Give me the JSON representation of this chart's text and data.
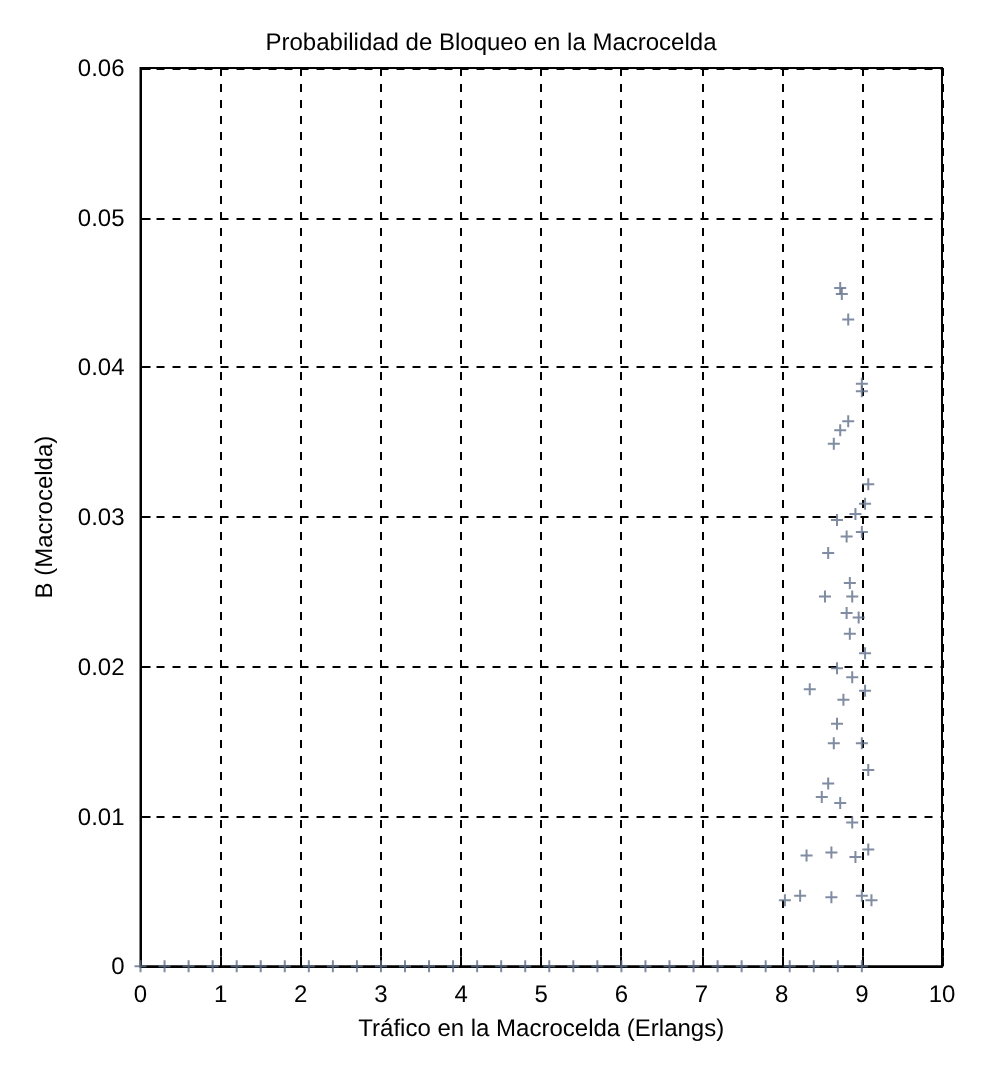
{
  "chart_data": {
    "type": "scatter",
    "title": "Probabilidad de Bloqueo en la Macrocelda",
    "xlabel": "Tráfico en la Macrocelda (Erlangs)",
    "ylabel": "B (Macrocelda)",
    "xlim": [
      0,
      10
    ],
    "ylim": [
      0,
      0.06
    ],
    "xticks": [
      0,
      1,
      2,
      3,
      4,
      5,
      6,
      7,
      8,
      9,
      10
    ],
    "yticks": [
      0,
      0.01,
      0.02,
      0.03,
      0.04,
      0.05,
      0.06
    ],
    "grid": true,
    "marker": "cross",
    "series": [
      {
        "color": "#5f6f8a",
        "x": [
          8.73,
          8.75,
          8.83,
          9.0,
          9.0,
          8.83,
          8.73,
          8.65,
          9.08,
          9.04,
          8.92,
          8.69,
          8.81,
          9.0,
          8.58,
          8.54,
          8.85,
          8.88,
          8.81,
          8.96,
          8.85,
          9.04,
          8.69,
          8.35,
          8.88,
          9.04,
          8.77,
          8.69,
          8.65,
          9.0,
          9.08,
          8.58,
          8.5,
          8.73,
          8.88,
          8.31,
          8.62,
          8.92,
          9.08,
          8.04,
          8.23,
          8.62,
          9.0,
          9.12,
          0,
          0.3,
          0.6,
          0.9,
          1.2,
          1.5,
          1.8,
          2.1,
          2.4,
          2.7,
          3.0,
          3.3,
          3.6,
          3.9,
          4.2,
          4.5,
          4.8,
          5.1,
          5.4,
          5.7,
          6.0,
          6.3,
          6.6,
          6.9,
          7.2,
          7.5,
          7.8,
          8.1,
          8.4,
          8.7,
          9.0
        ],
        "values": [
          0.0453,
          0.0449,
          0.0432,
          0.0389,
          0.0384,
          0.0364,
          0.0358,
          0.0349,
          0.0322,
          0.0309,
          0.0302,
          0.0298,
          0.0287,
          0.029,
          0.0276,
          0.0247,
          0.0256,
          0.0247,
          0.0236,
          0.0233,
          0.0222,
          0.0209,
          0.0199,
          0.0185,
          0.0193,
          0.0184,
          0.0178,
          0.0162,
          0.0149,
          0.0149,
          0.0131,
          0.0122,
          0.0113,
          0.0109,
          0.0096,
          0.0074,
          0.0076,
          0.0073,
          0.0078,
          0.0044,
          0.0047,
          0.0046,
          0.0047,
          0.0044,
          0,
          0,
          0,
          0,
          0,
          0,
          0,
          0,
          0,
          0,
          0,
          0,
          0,
          0,
          0,
          0,
          0,
          0,
          0,
          0,
          0,
          0,
          0,
          0,
          0,
          0,
          0,
          0,
          0,
          0,
          0
        ]
      }
    ]
  }
}
